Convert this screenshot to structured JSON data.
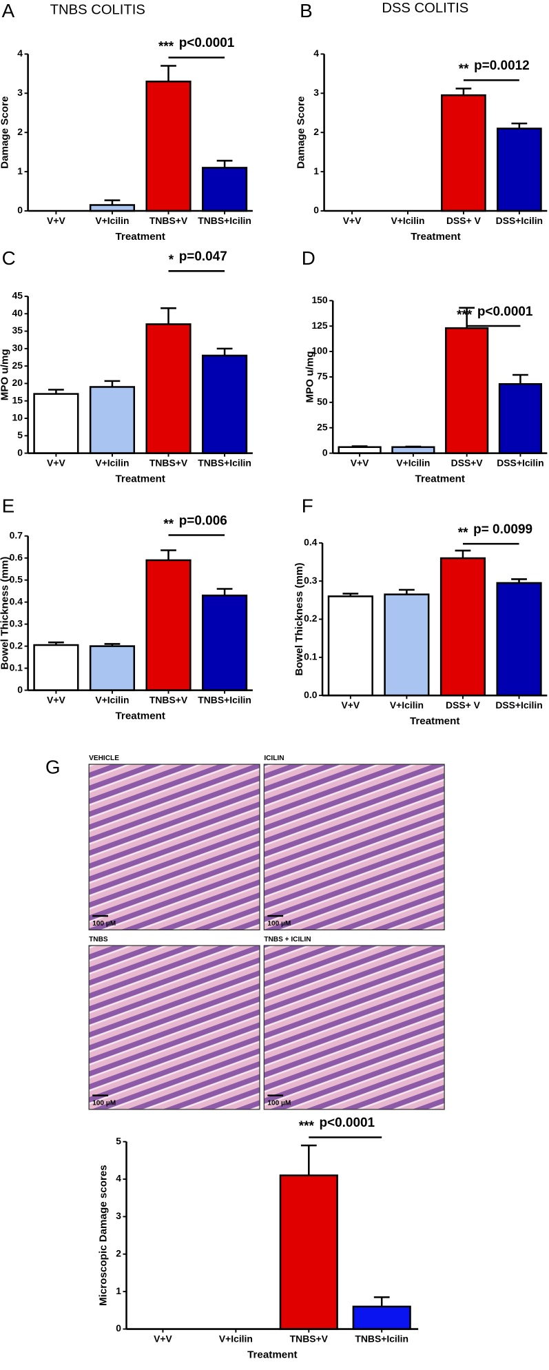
{
  "chart_data": [
    {
      "type": "bar",
      "panel": "A",
      "title": "TNBS  COLITIS",
      "y_label": "Damage Score",
      "x_label": "Treatment",
      "categories": [
        "V+V",
        "V+Icilin",
        "TNBS+V",
        "TNBS+Icilin"
      ],
      "values": [
        0,
        0.15,
        3.3,
        1.1
      ],
      "errors": [
        null,
        0.12,
        0.4,
        0.18
      ],
      "colors": [
        "#ffffff",
        "#a9c4f0",
        "#e00000",
        "#0000b0"
      ],
      "ylim": [
        0,
        4
      ],
      "yticks": [
        0,
        1,
        2,
        3,
        4
      ],
      "stars": "***",
      "p_text": "p<0.0001"
    },
    {
      "type": "bar",
      "panel": "B",
      "title": "DSS COLITIS",
      "y_label": "Damage Score",
      "x_label": "Treatment",
      "categories": [
        "V+V",
        "V+Icilin",
        "DSS+ V",
        "DSS+Icilin"
      ],
      "values": [
        0,
        0,
        2.95,
        2.1
      ],
      "errors": [
        null,
        null,
        0.17,
        0.13
      ],
      "colors": [
        "#ffffff",
        "#a9c4f0",
        "#e00000",
        "#0000b0"
      ],
      "ylim": [
        0,
        4
      ],
      "yticks": [
        0,
        1,
        2,
        3,
        4
      ],
      "stars": "**",
      "p_text": "p=0.0012"
    },
    {
      "type": "bar",
      "panel": "C",
      "y_label": "MPO u/mg",
      "x_label": "Treatment",
      "categories": [
        "V+V",
        "V+Icilin",
        "TNBS+V",
        "TNBS+Icilin"
      ],
      "values": [
        17,
        19,
        37,
        28
      ],
      "errors": [
        1.2,
        1.7,
        4.6,
        2
      ],
      "colors": [
        "#ffffff",
        "#a9c4f0",
        "#e00000",
        "#0000b0"
      ],
      "ylim": [
        0,
        45
      ],
      "yticks": [
        0,
        5,
        10,
        15,
        20,
        25,
        30,
        35,
        40,
        45
      ],
      "stars": "*",
      "p_text": "p=0.047"
    },
    {
      "type": "bar",
      "panel": "D",
      "y_label": "MPO u/mg",
      "x_label": "Treatment",
      "categories": [
        "V+V",
        "V+Icilin",
        "DSS+V",
        "DSS+Icilin"
      ],
      "values": [
        6,
        6,
        123,
        68
      ],
      "errors": [
        0.8,
        0.5,
        20,
        9
      ],
      "colors": [
        "#ffffff",
        "#a9c4f0",
        "#e00000",
        "#0000b0"
      ],
      "ylim": [
        0,
        150
      ],
      "yticks": [
        0,
        25,
        50,
        75,
        100,
        125,
        150
      ],
      "stars": "***",
      "p_text": "p<0.0001"
    },
    {
      "type": "bar",
      "panel": "E",
      "y_label": "Bowel Thickness (mm)",
      "x_label": "Treatment",
      "categories": [
        "V+V",
        "V+Icilin",
        "TNBS+V",
        "TNBS+Icilin"
      ],
      "values": [
        0.205,
        0.2,
        0.59,
        0.43
      ],
      "errors": [
        0.012,
        0.01,
        0.045,
        0.03
      ],
      "colors": [
        "#ffffff",
        "#a9c4f0",
        "#e00000",
        "#0000b0"
      ],
      "ylim": [
        0,
        0.7
      ],
      "yticks": [
        0,
        0.1,
        0.2,
        0.3,
        0.4,
        0.5,
        0.6,
        0.7
      ],
      "stars": "**",
      "p_text": "p=0.006"
    },
    {
      "type": "bar",
      "panel": "F",
      "y_label": "Bowel Thickness (mm)",
      "x_label": "Treatment",
      "categories": [
        "V+V",
        "V+Icilin",
        "DSS+ V",
        "DSS+Icilin"
      ],
      "values": [
        0.26,
        0.265,
        0.36,
        0.295
      ],
      "errors": [
        0.007,
        0.012,
        0.02,
        0.01
      ],
      "colors": [
        "#ffffff",
        "#a9c4f0",
        "#e00000",
        "#0000b0"
      ],
      "ylim": [
        0,
        0.4
      ],
      "yticks": [
        {
          "value": 0,
          "label": "0.0"
        },
        0.1,
        0.2,
        0.3,
        0.4
      ],
      "stars": "**",
      "p_text": "p= 0.0099"
    },
    {
      "type": "bar",
      "y_label": "Microscopic Damage scores",
      "x_label": "Treatment",
      "categories": [
        "V+V",
        "V+Icilin",
        "TNBS+V",
        "TNBS+Icilin"
      ],
      "values": [
        0,
        0,
        4.1,
        0.6
      ],
      "errors": [
        null,
        null,
        0.8,
        0.25
      ],
      "colors": [
        "#ffffff",
        "#a9c4f0",
        "#e00000",
        "#0a14f0"
      ],
      "ylim": [
        0,
        5
      ],
      "yticks": [
        0,
        1,
        2,
        3,
        4,
        5
      ],
      "stars": "***",
      "p_text": "p<0.0001"
    }
  ],
  "micrographs": {
    "panel": "G",
    "images": [
      {
        "label": "VEHICLE",
        "scale": "100 µM"
      },
      {
        "label": "ICILIN",
        "scale": "100 µM"
      },
      {
        "label": "TNBS",
        "scale": "100 µM"
      },
      {
        "label": "TNBS + ICILIN",
        "scale": "100 µM"
      }
    ]
  }
}
